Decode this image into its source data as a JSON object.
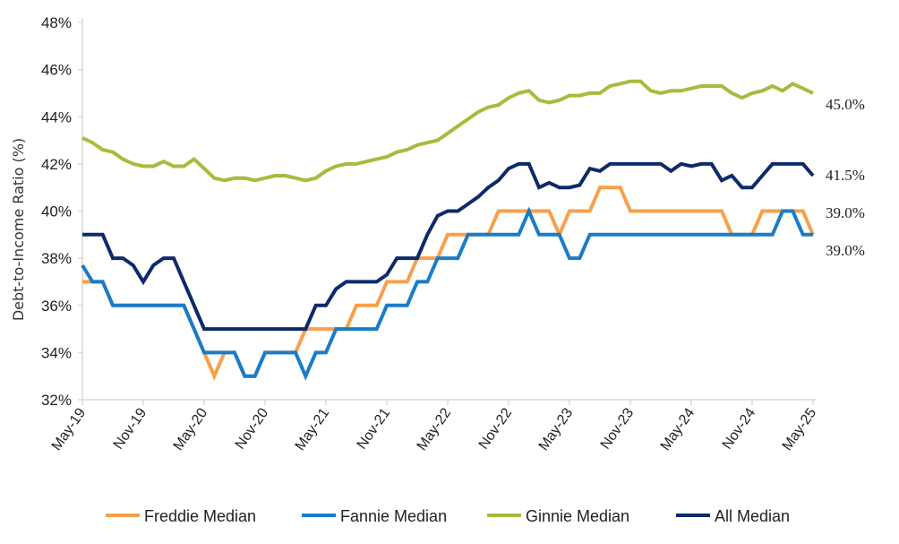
{
  "chart_data": {
    "type": "line",
    "ylabel": "Debt-to-Income Ratio (%)",
    "ylim": [
      32,
      48
    ],
    "y_ticks": [
      "32%",
      "34%",
      "36%",
      "38%",
      "40%",
      "42%",
      "44%",
      "46%",
      "48%"
    ],
    "y_tick_values": [
      32,
      34,
      36,
      38,
      40,
      42,
      44,
      46,
      48
    ],
    "x_ticks": [
      "May-19",
      "Nov-19",
      "May-20",
      "Nov-20",
      "May-21",
      "Nov-21",
      "May-22",
      "Nov-22",
      "May-23",
      "Nov-23",
      "May-24",
      "Nov-24",
      "May-25"
    ],
    "x": [
      "2019-05",
      "2019-06",
      "2019-07",
      "2019-08",
      "2019-09",
      "2019-10",
      "2019-11",
      "2019-12",
      "2020-01",
      "2020-02",
      "2020-03",
      "2020-04",
      "2020-05",
      "2020-06",
      "2020-07",
      "2020-08",
      "2020-09",
      "2020-10",
      "2020-11",
      "2020-12",
      "2021-01",
      "2021-02",
      "2021-03",
      "2021-04",
      "2021-05",
      "2021-06",
      "2021-07",
      "2021-08",
      "2021-09",
      "2021-10",
      "2021-11",
      "2021-12",
      "2022-01",
      "2022-02",
      "2022-03",
      "2022-04",
      "2022-05",
      "2022-06",
      "2022-07",
      "2022-08",
      "2022-09",
      "2022-10",
      "2022-11",
      "2022-12",
      "2023-01",
      "2023-02",
      "2023-03",
      "2023-04",
      "2023-05",
      "2023-06",
      "2023-07",
      "2023-08",
      "2023-09",
      "2023-10",
      "2023-11",
      "2023-12",
      "2024-01",
      "2024-02",
      "2024-03",
      "2024-04",
      "2024-05",
      "2024-06",
      "2024-07",
      "2024-08",
      "2024-09",
      "2024-10",
      "2024-11",
      "2024-12",
      "2025-01",
      "2025-02",
      "2025-03",
      "2025-04",
      "2025-05"
    ],
    "grid": false,
    "legend_position": "bottom",
    "series": [
      {
        "name": "Freddie Median",
        "color": "#f7a04b",
        "end_label": "39.0%",
        "values": [
          37,
          37,
          37,
          36,
          36,
          36,
          36,
          36,
          36,
          36,
          36,
          35,
          34,
          33,
          34,
          34,
          33,
          33,
          34,
          34,
          34,
          34,
          35,
          35,
          35,
          35,
          35,
          36,
          36,
          36,
          37,
          37,
          37,
          38,
          38,
          38,
          39,
          39,
          39,
          39,
          39,
          40,
          40,
          40,
          40,
          40,
          40,
          39,
          40,
          40,
          40,
          41,
          41,
          41,
          40,
          40,
          40,
          40,
          40,
          40,
          40,
          40,
          40,
          40,
          39,
          39,
          39,
          40,
          40,
          40,
          40,
          40,
          39
        ]
      },
      {
        "name": "Fannie Median",
        "color": "#1a7cc9",
        "end_label": "39.0%",
        "values": [
          37.7,
          37,
          37,
          36,
          36,
          36,
          36,
          36,
          36,
          36,
          36,
          35,
          34,
          34,
          34,
          34,
          33,
          33,
          34,
          34,
          34,
          34,
          33,
          34,
          34,
          35,
          35,
          35,
          35,
          35,
          36,
          36,
          36,
          37,
          37,
          38,
          38,
          38,
          39,
          39,
          39,
          39,
          39,
          39,
          40,
          39,
          39,
          39,
          38,
          38,
          39,
          39,
          39,
          39,
          39,
          39,
          39,
          39,
          39,
          39,
          39,
          39,
          39,
          39,
          39,
          39,
          39,
          39,
          39,
          40,
          40,
          39,
          39
        ]
      },
      {
        "name": "Ginnie Median",
        "color": "#a4bd3c",
        "end_label": "45.0%",
        "values": [
          43.1,
          42.9,
          42.6,
          42.5,
          42.2,
          42.0,
          41.9,
          41.9,
          42.1,
          41.9,
          41.9,
          42.2,
          41.8,
          41.4,
          41.3,
          41.4,
          41.4,
          41.3,
          41.4,
          41.5,
          41.5,
          41.4,
          41.3,
          41.4,
          41.7,
          41.9,
          42.0,
          42.0,
          42.1,
          42.2,
          42.3,
          42.5,
          42.6,
          42.8,
          42.9,
          43.0,
          43.3,
          43.6,
          43.9,
          44.2,
          44.4,
          44.5,
          44.8,
          45.0,
          45.1,
          44.7,
          44.6,
          44.7,
          44.9,
          44.9,
          45.0,
          45.0,
          45.3,
          45.4,
          45.5,
          45.5,
          45.1,
          45.0,
          45.1,
          45.1,
          45.2,
          45.3,
          45.3,
          45.3,
          45.0,
          44.8,
          45.0,
          45.1,
          45.3,
          45.1,
          45.4,
          45.2,
          45.0
        ]
      },
      {
        "name": "All Median",
        "color": "#0d2a6b",
        "end_label": "41.5%",
        "values": [
          39,
          39,
          39,
          38,
          38,
          37.7,
          37,
          37.7,
          38,
          38,
          37,
          36,
          35,
          35,
          35,
          35,
          35,
          35,
          35,
          35,
          35,
          35,
          35,
          36,
          36,
          36.7,
          37,
          37,
          37,
          37,
          37.3,
          38,
          38,
          38,
          39,
          39.8,
          40,
          40,
          40.3,
          40.6,
          41,
          41.3,
          41.8,
          42,
          42,
          41,
          41.2,
          41,
          41,
          41.1,
          41.8,
          41.7,
          42,
          42,
          42,
          42,
          42,
          42,
          41.7,
          42,
          41.9,
          42,
          42,
          41.3,
          41.5,
          41,
          41,
          41.5,
          42,
          42,
          42,
          42,
          41.5
        ]
      }
    ]
  }
}
